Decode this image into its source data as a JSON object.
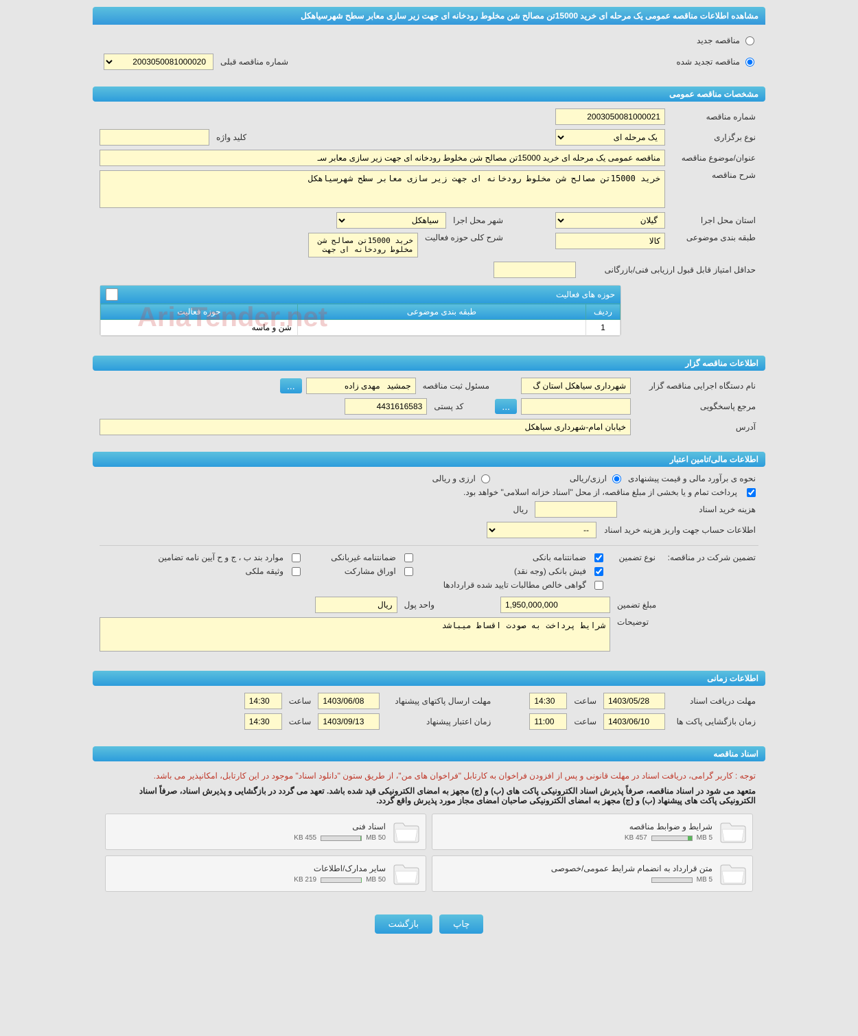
{
  "page_title": "مشاهده اطلاعات مناقصه عمومی یک مرحله ای خرید 15000تن مصالح شن مخلوط رودخانه ای جهت زیر سازی معابر سطح شهرسیاهکل",
  "tender_status": {
    "new_label": "مناقصه جدید",
    "renewed_label": "مناقصه تجدید شده",
    "selected": "renewed"
  },
  "prev_tender": {
    "label": "شماره مناقصه قبلی",
    "value": "2003050081000020"
  },
  "sections": {
    "general": "مشخصات مناقصه عمومی",
    "holder": "اطلاعات مناقصه گزار",
    "financial": "اطلاعات مالی/تامین اعتبار",
    "timing": "اطلاعات زمانی",
    "documents": "اسناد مناقصه"
  },
  "general": {
    "tender_no_label": "شماره مناقصه",
    "tender_no": "2003050081000021",
    "type_label": "نوع برگزاری",
    "type_value": "یک مرحله ای",
    "keyword_label": "کلید واژه",
    "keyword_value": "",
    "subject_label": "عنوان/موضوع مناقصه",
    "subject_value": "مناقصه عمومی یک مرحله ای خرید 15000تن مصالح شن مخلوط رودخانه ای جهت زیر سازی معابر سـ",
    "description_label": "شرح مناقصه",
    "description_value": "خرید 15000تن مصالح شن مخلوط رودخانه ای جهت زیر سازی معابر سطح شهرسیاهکل",
    "province_label": "استان محل اجرا",
    "province_value": "گیلان",
    "city_label": "شهر محل اجرا",
    "city_value": "سیاهکل",
    "category_label": "طبقه بندی موضوعی",
    "category_value": "کالا",
    "activity_desc_label": "شرح کلی حوزه فعالیت",
    "activity_desc_value": "خرید 15000تن مصالح شن\nمخلوط رودخانه ای جهت",
    "min_score_label": "حداقل امتیاز قابل قبول ارزیابی فنی/بازرگانی",
    "min_score_value": ""
  },
  "activities": {
    "panel_title": "حوزه های فعالیت",
    "cols": [
      "ردیف",
      "طبقه بندی موضوعی",
      "حوزه فعالیت"
    ],
    "rows": [
      {
        "no": "1",
        "category": "",
        "activity": "شن و ماسه"
      }
    ]
  },
  "holder": {
    "org_label": "نام دستگاه اجرایی مناقصه گزار",
    "org_value": "شهرداری سیاهکل استان گ",
    "responsible_label": "مسئول ثبت مناقصه",
    "responsible_value": "جمشید   مهدی زاده",
    "contact_label": "مرجع پاسخگویی",
    "contact_value": "",
    "postal_label": "کد پستی",
    "postal_value": "4431616583",
    "address_label": "آدرس",
    "address_value": "خیابان امام-شهرداری سیاهکل"
  },
  "financial": {
    "estimate_method_label": "نحوه ی برآورد مالی و قیمت پیشنهادی",
    "rial_option": "ارزی/ریالی",
    "currency_option": "ارزی و ریالی",
    "treasury_note": "پرداخت تمام و یا بخشی از مبلغ مناقصه، از محل \"اسناد خزانه اسلامی\" خواهد بود.",
    "purchase_cost_label": "هزینه خرید اسناد",
    "purchase_cost_value": "",
    "rial_unit": "ریال",
    "account_info_label": "اطلاعات حساب جهت واریز هزینه خرید اسناد",
    "account_info_value": "--",
    "guarantee_section_label": "تضمین شرکت در مناقصه:",
    "guarantee_type_label": "نوع تضمین",
    "guarantee_types": {
      "bank_guarantee": "ضمانتنامه بانکی",
      "non_bank_guarantee": "ضمانتنامه غیربانکی",
      "clause_items": "موارد بند ب ، ج و ح آیین نامه تضامین",
      "bank_receipt": "فیش بانکی (وجه نقد)",
      "participation_bonds": "اوراق مشارکت",
      "property_deed": "وثیقه ملکی",
      "contract_cert": "گواهی خالص مطالبات تایید شده قراردادها"
    },
    "guarantee_amount_label": "مبلغ تضمین",
    "guarantee_amount_value": "1,950,000,000",
    "currency_unit_label": "واحد پول",
    "currency_unit_value": "ریال",
    "notes_label": "توضیحات",
    "notes_value": "شرایط پرداخت به صودت اقساط میباشد"
  },
  "timing": {
    "receive_deadline_label": "مهلت دریافت اسناد",
    "receive_deadline_date": "1403/05/28",
    "time_label": "ساعت",
    "receive_deadline_time": "14:30",
    "submit_deadline_label": "مهلت ارسال پاکتهای پیشنهاد",
    "submit_deadline_date": "1403/06/08",
    "submit_deadline_time": "14:30",
    "opening_label": "زمان بازگشایی پاکت ها",
    "opening_date": "1403/06/10",
    "opening_time": "11:00",
    "validity_label": "زمان اعتبار پیشنهاد",
    "validity_date": "1403/09/13",
    "validity_time": "14:30"
  },
  "documents": {
    "notice1": "توجه : کاربر گرامی، دریافت اسناد در مهلت قانونی و پس از افزودن فراخوان به کارتابل \"فراخوان های من\"، از طریق ستون \"دانلود اسناد\" موجود در این کارتابل، امکانپذیر می باشد.",
    "notice2": "متعهد می شود در اسناد مناقصه، صرفاً پذیرش اسناد الکترونیکی پاکت های (ب) و (ج) مجهز به امضای الکترونیکی قید شده باشد. تعهد می گردد در بازگشایی و پذیرش اسناد، صرفاً اسناد الکترونیکی پاکت های پیشنهاد (ب) و (ج) مجهز به امضای الکترونیکی صاحبان امضای مجاز مورد پذیرش واقع گردد.",
    "items": [
      {
        "title": "شرایط و ضوابط مناقصه",
        "size": "457 KB",
        "max": "5 MB",
        "fill": 10
      },
      {
        "title": "اسناد فنی",
        "size": "455 KB",
        "max": "50 MB",
        "fill": 2
      },
      {
        "title": "متن قرارداد به انضمام شرایط عمومی/خصوصی",
        "size": "",
        "max": "5 MB",
        "fill": 0
      },
      {
        "title": "سایر مدارک/اطلاعات",
        "size": "219 KB",
        "max": "50 MB",
        "fill": 1
      }
    ]
  },
  "buttons": {
    "print": "چاپ",
    "back": "بازگشت",
    "more": "..."
  },
  "watermark": "AriaTender.net"
}
